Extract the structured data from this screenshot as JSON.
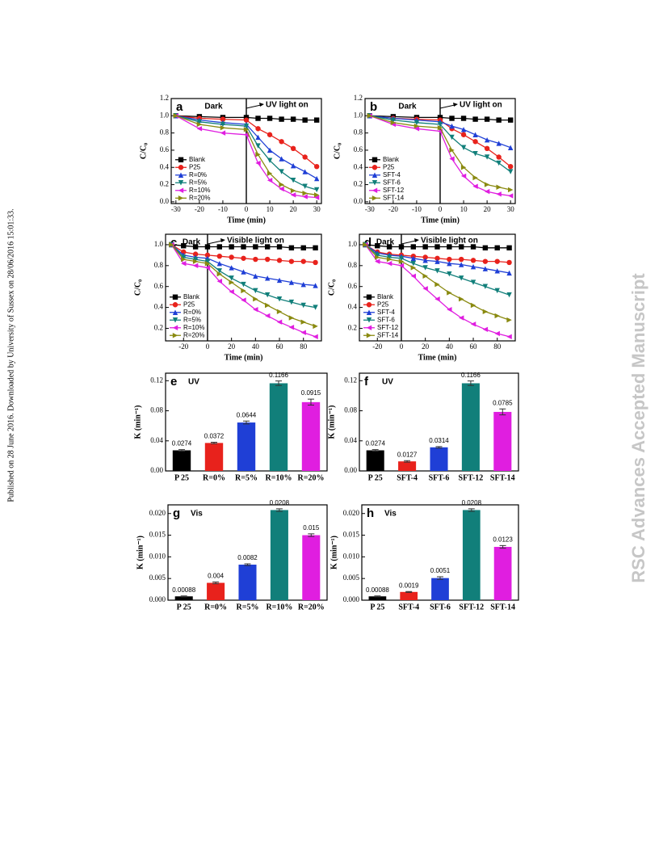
{
  "side_note": "Published on 28 June 2016. Downloaded by University of Sussex on 28/06/2016 15:01:33.",
  "watermark": "RSC Advances Accepted Manuscript",
  "chart_data": [
    {
      "type": "line",
      "panel": "a",
      "annotations": [
        "Dark",
        "UV light on"
      ],
      "xlabel": "Time (min)",
      "ylabel": "C/C₀",
      "legend": "lower left",
      "x": [
        -30,
        -20,
        -10,
        0,
        5,
        10,
        15,
        20,
        25,
        30
      ],
      "xlim": [
        -32,
        32
      ],
      "xticks": [
        -30,
        -20,
        -10,
        0,
        10,
        20,
        30
      ],
      "ylim": [
        -0.02,
        1.2
      ],
      "yticks": [
        {
          "value": 0,
          "label": "0.0"
        },
        0.2,
        0.4,
        0.6,
        0.8,
        {
          "value": 1,
          "label": "1.0"
        },
        1.2
      ],
      "series": [
        {
          "name": "Blank",
          "color": "#000000",
          "values": [
            1.0,
            0.99,
            0.98,
            0.98,
            0.97,
            0.97,
            0.96,
            0.96,
            0.95,
            0.95
          ]
        },
        {
          "name": "P25",
          "color": "#e8221c",
          "values": [
            1.0,
            0.97,
            0.96,
            0.95,
            0.85,
            0.78,
            0.7,
            0.62,
            0.52,
            0.41
          ]
        },
        {
          "name": "R=0%",
          "color": "#1f3fd6",
          "values": [
            1.0,
            0.95,
            0.92,
            0.9,
            0.75,
            0.6,
            0.5,
            0.42,
            0.35,
            0.27
          ]
        },
        {
          "name": "R=5%",
          "color": "#117f7a",
          "values": [
            1.0,
            0.93,
            0.9,
            0.88,
            0.65,
            0.48,
            0.35,
            0.25,
            0.18,
            0.14
          ]
        },
        {
          "name": "R=10%",
          "color": "#e01ee0",
          "values": [
            1.0,
            0.85,
            0.8,
            0.78,
            0.45,
            0.25,
            0.15,
            0.08,
            0.06,
            0.05
          ]
        },
        {
          "name": "R=20%",
          "color": "#8a8a10",
          "values": [
            1.0,
            0.9,
            0.86,
            0.84,
            0.55,
            0.33,
            0.2,
            0.13,
            0.1,
            0.08
          ]
        }
      ]
    },
    {
      "type": "line",
      "panel": "b",
      "annotations": [
        "Dark",
        "UV light on"
      ],
      "xlabel": "Time (min)",
      "ylabel": "C/C₀",
      "legend": "lower left",
      "x": [
        -30,
        -20,
        -10,
        0,
        5,
        10,
        15,
        20,
        25,
        30
      ],
      "xlim": [
        -32,
        32
      ],
      "xticks": [
        -30,
        -20,
        -10,
        0,
        10,
        20,
        30
      ],
      "ylim": [
        -0.02,
        1.2
      ],
      "yticks": [
        {
          "value": 0,
          "label": "0.0"
        },
        0.2,
        0.4,
        0.6,
        0.8,
        {
          "value": 1,
          "label": "1.0"
        },
        1.2
      ],
      "series": [
        {
          "name": "Blank",
          "color": "#000000",
          "values": [
            1.0,
            0.99,
            0.98,
            0.98,
            0.97,
            0.97,
            0.96,
            0.96,
            0.95,
            0.95
          ]
        },
        {
          "name": "P25",
          "color": "#e8221c",
          "values": [
            1.0,
            0.97,
            0.96,
            0.95,
            0.85,
            0.78,
            0.7,
            0.62,
            0.52,
            0.41
          ]
        },
        {
          "name": "SFT-4",
          "color": "#1f3fd6",
          "values": [
            1.0,
            0.97,
            0.95,
            0.93,
            0.88,
            0.84,
            0.78,
            0.72,
            0.68,
            0.63
          ]
        },
        {
          "name": "SFT-6",
          "color": "#117f7a",
          "values": [
            1.0,
            0.95,
            0.92,
            0.9,
            0.75,
            0.63,
            0.56,
            0.52,
            0.45,
            0.35
          ]
        },
        {
          "name": "SFT-12",
          "color": "#e01ee0",
          "values": [
            1.0,
            0.9,
            0.85,
            0.82,
            0.5,
            0.3,
            0.18,
            0.12,
            0.09,
            0.07
          ]
        },
        {
          "name": "SFT-14",
          "color": "#8a8a10",
          "values": [
            1.0,
            0.92,
            0.88,
            0.86,
            0.6,
            0.4,
            0.28,
            0.2,
            0.17,
            0.14
          ]
        }
      ]
    },
    {
      "type": "line",
      "panel": "c",
      "annotations": [
        "Dark",
        "Visible light on"
      ],
      "xlabel": "Time (min)",
      "ylabel": "C/C₀",
      "legend": "lower left",
      "x": [
        -30,
        -20,
        -10,
        0,
        10,
        20,
        30,
        40,
        50,
        60,
        70,
        80,
        90
      ],
      "xlim": [
        -35,
        95
      ],
      "xticks": [
        -20,
        0,
        20,
        40,
        60,
        80
      ],
      "ylim": [
        0.08,
        1.1
      ],
      "yticks": [
        0.2,
        0.4,
        0.6,
        0.8,
        {
          "value": 1,
          "label": "1.0"
        }
      ],
      "series": [
        {
          "name": "Blank",
          "color": "#000000",
          "values": [
            1.0,
            0.99,
            0.98,
            0.98,
            0.98,
            0.98,
            0.98,
            0.98,
            0.98,
            0.98,
            0.97,
            0.97,
            0.97
          ]
        },
        {
          "name": "P25",
          "color": "#e8221c",
          "values": [
            1.0,
            0.93,
            0.91,
            0.9,
            0.89,
            0.88,
            0.87,
            0.86,
            0.86,
            0.85,
            0.84,
            0.84,
            0.83
          ]
        },
        {
          "name": "R=0%",
          "color": "#1f3fd6",
          "values": [
            1.0,
            0.9,
            0.88,
            0.87,
            0.82,
            0.78,
            0.74,
            0.7,
            0.68,
            0.66,
            0.64,
            0.62,
            0.61
          ]
        },
        {
          "name": "R=5%",
          "color": "#117f7a",
          "values": [
            1.0,
            0.88,
            0.86,
            0.84,
            0.75,
            0.68,
            0.62,
            0.56,
            0.52,
            0.48,
            0.45,
            0.42,
            0.4
          ]
        },
        {
          "name": "R=10%",
          "color": "#e01ee0",
          "values": [
            1.0,
            0.82,
            0.8,
            0.78,
            0.65,
            0.55,
            0.47,
            0.38,
            0.32,
            0.26,
            0.21,
            0.16,
            0.12
          ]
        },
        {
          "name": "R=20%",
          "color": "#8a8a10",
          "values": [
            1.0,
            0.86,
            0.84,
            0.82,
            0.72,
            0.64,
            0.56,
            0.48,
            0.42,
            0.36,
            0.3,
            0.26,
            0.22
          ]
        }
      ]
    },
    {
      "type": "line",
      "panel": "d",
      "annotations": [
        "Dark",
        "Visible light on"
      ],
      "xlabel": "Time (min)",
      "ylabel": "C/C₀",
      "legend": "lower left",
      "x": [
        -30,
        -20,
        -10,
        0,
        10,
        20,
        30,
        40,
        50,
        60,
        70,
        80,
        90
      ],
      "xlim": [
        -35,
        95
      ],
      "xticks": [
        -20,
        0,
        20,
        40,
        60,
        80
      ],
      "ylim": [
        0.08,
        1.1
      ],
      "yticks": [
        0.2,
        0.4,
        0.6,
        0.8,
        {
          "value": 1,
          "label": "1.0"
        }
      ],
      "series": [
        {
          "name": "Blank",
          "color": "#000000",
          "values": [
            1.0,
            0.99,
            0.98,
            0.98,
            0.98,
            0.98,
            0.98,
            0.98,
            0.98,
            0.98,
            0.97,
            0.97,
            0.97
          ]
        },
        {
          "name": "P25",
          "color": "#e8221c",
          "values": [
            1.0,
            0.93,
            0.91,
            0.9,
            0.89,
            0.88,
            0.87,
            0.86,
            0.86,
            0.85,
            0.84,
            0.84,
            0.83
          ]
        },
        {
          "name": "SFT-4",
          "color": "#1f3fd6",
          "values": [
            1.0,
            0.92,
            0.9,
            0.89,
            0.87,
            0.85,
            0.84,
            0.82,
            0.81,
            0.79,
            0.77,
            0.75,
            0.73
          ]
        },
        {
          "name": "SFT-6",
          "color": "#117f7a",
          "values": [
            1.0,
            0.9,
            0.88,
            0.87,
            0.82,
            0.78,
            0.75,
            0.72,
            0.68,
            0.64,
            0.6,
            0.56,
            0.52
          ]
        },
        {
          "name": "SFT-12",
          "color": "#e01ee0",
          "values": [
            1.0,
            0.84,
            0.82,
            0.8,
            0.7,
            0.58,
            0.48,
            0.38,
            0.3,
            0.24,
            0.19,
            0.15,
            0.12
          ]
        },
        {
          "name": "SFT-14",
          "color": "#8a8a10",
          "values": [
            1.0,
            0.88,
            0.86,
            0.84,
            0.78,
            0.7,
            0.62,
            0.54,
            0.48,
            0.42,
            0.36,
            0.32,
            0.28
          ]
        }
      ]
    },
    {
      "type": "bar",
      "panel": "e",
      "annotations": [
        "UV"
      ],
      "ylabel": "K (min⁻¹)",
      "categories": [
        "P 25",
        "R=0%",
        "R=5%",
        "R=10%",
        "R=20%"
      ],
      "values": [
        0.0274,
        0.0372,
        0.0644,
        0.1166,
        0.0915
      ],
      "errors": [
        0.001,
        0.001,
        0.002,
        0.003,
        0.004
      ],
      "colors": [
        "#000000",
        "#e8221c",
        "#1f3fd6",
        "#117f7a",
        "#e01ee0"
      ],
      "ylim": [
        0,
        0.13
      ],
      "yticks": [
        {
          "value": 0,
          "label": "0.00"
        },
        0.04,
        0.08,
        0.12
      ]
    },
    {
      "type": "bar",
      "panel": "f",
      "annotations": [
        "UV"
      ],
      "ylabel": "K (min⁻¹)",
      "categories": [
        "P 25",
        "SFT-4",
        "SFT-6",
        "SFT-12",
        "SFT-14"
      ],
      "values": [
        0.0274,
        0.0127,
        0.0314,
        0.1166,
        0.0785
      ],
      "errors": [
        0.001,
        0.001,
        0.001,
        0.003,
        0.004
      ],
      "colors": [
        "#000000",
        "#e8221c",
        "#1f3fd6",
        "#117f7a",
        "#e01ee0"
      ],
      "ylim": [
        0,
        0.13
      ],
      "yticks": [
        {
          "value": 0,
          "label": "0.00"
        },
        0.04,
        0.08,
        0.12
      ]
    },
    {
      "type": "bar",
      "panel": "g",
      "annotations": [
        "Vis"
      ],
      "ylabel": "K (min⁻¹)",
      "categories": [
        "P 25",
        "R=0%",
        "R=5%",
        "R=10%",
        "R=20%"
      ],
      "values": [
        0.00088,
        0.004,
        0.0082,
        0.0208,
        0.015
      ],
      "errors": [
        0.0001,
        0.0002,
        0.0002,
        0.0003,
        0.0003
      ],
      "colors": [
        "#000000",
        "#e8221c",
        "#1f3fd6",
        "#117f7a",
        "#e01ee0"
      ],
      "ylim": [
        0,
        0.022
      ],
      "yticks": [
        {
          "value": 0,
          "label": "0.000"
        },
        0.005,
        {
          "value": 0.01,
          "label": "0.010"
        },
        0.015,
        {
          "value": 0.02,
          "label": "0.020"
        }
      ]
    },
    {
      "type": "bar",
      "panel": "h",
      "annotations": [
        "Vis"
      ],
      "ylabel": "K (min⁻¹)",
      "categories": [
        "P 25",
        "SFT-4",
        "SFT-6",
        "SFT-12",
        "SFT-14"
      ],
      "values": [
        0.00088,
        0.0019,
        0.0051,
        0.0208,
        0.0123
      ],
      "errors": [
        0.0001,
        0.0001,
        0.0003,
        0.0003,
        0.0003
      ],
      "colors": [
        "#000000",
        "#e8221c",
        "#1f3fd6",
        "#117f7a",
        "#e01ee0"
      ],
      "ylim": [
        0,
        0.022
      ],
      "yticks": [
        {
          "value": 0,
          "label": "0.000"
        },
        0.005,
        {
          "value": 0.01,
          "label": "0.010"
        },
        0.015,
        {
          "value": 0.02,
          "label": "0.020"
        }
      ]
    }
  ]
}
